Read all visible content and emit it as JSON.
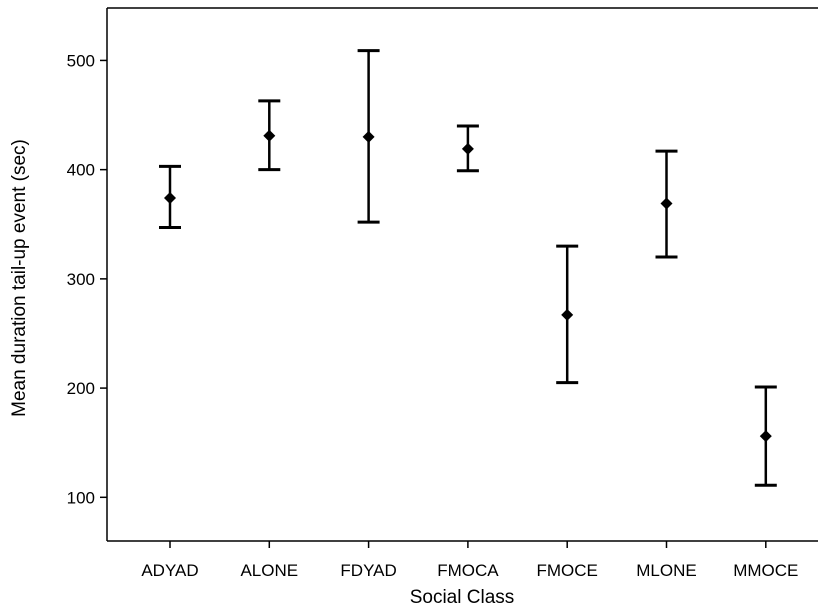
{
  "chart_data": {
    "type": "scatter",
    "subtype": "point-with-error-bars",
    "title": "",
    "xlabel": "Social Class",
    "ylabel": "Mean duration tail-up event (sec)",
    "categories": [
      "ADYAD",
      "ALONE",
      "FDYAD",
      "FMOCA",
      "FMOCE",
      "MLONE",
      "MMOCE"
    ],
    "series": [
      {
        "values": [
          374,
          431,
          430,
          419,
          267,
          369,
          156
        ],
        "lower": [
          347,
          400,
          352,
          399,
          205,
          320,
          111
        ],
        "upper": [
          403,
          463,
          509,
          440,
          330,
          417,
          201
        ]
      }
    ],
    "y_ticks": [
      100,
      200,
      300,
      400,
      500
    ],
    "ylim": [
      60,
      548
    ],
    "grid": false,
    "legend": "none",
    "marker": "diamond",
    "colors": {
      "marker": "#000000",
      "axis": "#000000"
    }
  }
}
